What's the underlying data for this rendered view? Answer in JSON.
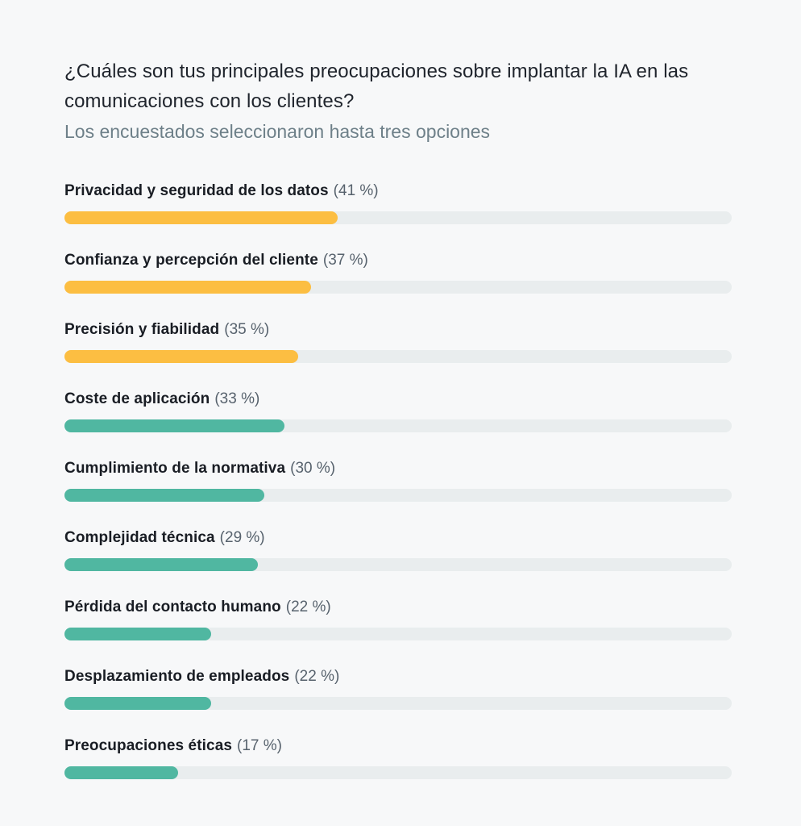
{
  "header": {
    "title": "¿Cuáles son tus principales preocupaciones sobre implantar la IA en las comunicaciones con los clientes?",
    "subtitle": "Los encuestados seleccionaron hasta tres opciones"
  },
  "colors": {
    "background": "#F7F8F9",
    "track": "#E9EDEE",
    "yellow": "#FCBE42",
    "teal": "#50B7A1",
    "title_text": "#1F242C",
    "subtitle_text": "#6E8089",
    "label_text": "#191D24",
    "percent_text": "#57626D"
  },
  "chart_data": {
    "type": "bar",
    "orientation": "horizontal",
    "title": "¿Cuáles son tus principales preocupaciones sobre implantar la IA en las comunicaciones con los clientes?",
    "subtitle": "Los encuestados seleccionaron hasta tres opciones",
    "categories": [
      "Privacidad y seguridad de los datos",
      "Confianza y percepción del cliente",
      "Precisión y fiabilidad",
      "Coste de aplicación",
      "Cumplimiento de la normativa",
      "Complejidad técnica",
      "Pérdida del contacto humano",
      "Desplazamiento de empleados",
      "Preocupaciones éticas"
    ],
    "values": [
      41,
      37,
      35,
      33,
      30,
      29,
      22,
      22,
      17
    ],
    "percent_labels": [
      "(41 %)",
      "(37 %)",
      "(35 %)",
      "(33 %)",
      "(30 %)",
      "(29 %)",
      "(22 %)",
      "(22 %)",
      "(17 %)"
    ],
    "bar_color_keys": [
      "yellow",
      "yellow",
      "yellow",
      "teal",
      "teal",
      "teal",
      "teal",
      "teal",
      "teal"
    ],
    "xlim": [
      0,
      100
    ],
    "grid": false,
    "legend": "none"
  }
}
